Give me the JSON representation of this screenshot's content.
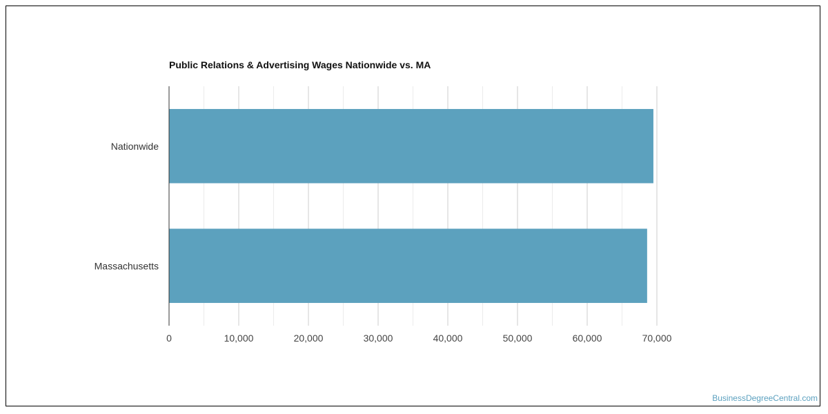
{
  "chart_data": {
    "type": "bar",
    "orientation": "horizontal",
    "title": "Public Relations & Advertising Wages Nationwide vs. MA",
    "categories": [
      "Nationwide",
      "Massachusetts"
    ],
    "values": [
      69500,
      68600
    ],
    "xlabel": "",
    "ylabel": "",
    "xlim": [
      0,
      70000
    ],
    "xticks": [
      0,
      10000,
      20000,
      30000,
      40000,
      50000,
      60000,
      70000
    ],
    "xtick_labels": [
      "0",
      "10,000",
      "20,000",
      "30,000",
      "40,000",
      "50,000",
      "60,000",
      "70,000"
    ],
    "grid": true,
    "legend": "none",
    "bar_color": "#5ca1be"
  },
  "watermark": "BusinessDegreeCentral.com"
}
